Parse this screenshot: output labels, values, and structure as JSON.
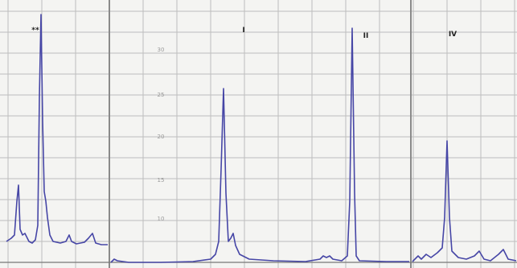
{
  "peak_labels": [
    "**",
    "I",
    "II",
    "IV"
  ],
  "axis_labels": [
    "30",
    "25",
    "20",
    "15",
    "10"
  ]
}
